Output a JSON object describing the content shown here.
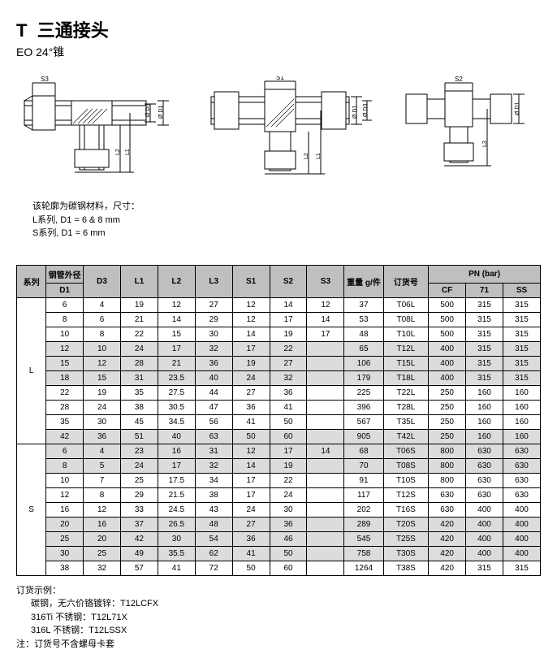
{
  "header": {
    "titlePrefix": "T",
    "titleMain": "三通接头",
    "subtitle": "EO 24°锥"
  },
  "diagramLabels": {
    "S1": "S1",
    "S2": "S2",
    "S3": "S3",
    "D1": "Ø D1",
    "D3": "Ø D3",
    "L1": "L1",
    "L2": "L2",
    "L3": "L3"
  },
  "diagramNote": {
    "line1": "该轮廓为碳钢材料，尺寸：",
    "line2": "L系列, D1 = 6 & 8 mm",
    "line3": "S系列, D1 = 6 mm"
  },
  "tableHeaders": {
    "series": "系列",
    "tubeOD": "钢管外径",
    "D1": "D1",
    "D3": "D3",
    "L1": "L1",
    "L2": "L2",
    "L3": "L3",
    "S1": "S1",
    "S2": "S2",
    "S3": "S3",
    "weight": "重量 g/件",
    "order": "订货号",
    "pn": "PN (bar)",
    "CF": "CF",
    "c71": "71",
    "SS": "SS"
  },
  "seriesL": "L",
  "seriesS": "S",
  "rowsL": [
    {
      "D1": "6",
      "D3": "4",
      "L1": "19",
      "L2": "12",
      "L3": "27",
      "S1": "12",
      "S2": "14",
      "S3": "12",
      "W": "37",
      "O": "T06L",
      "CF": "500",
      "c71": "315",
      "SS": "315",
      "sh": false
    },
    {
      "D1": "8",
      "D3": "6",
      "L1": "21",
      "L2": "14",
      "L3": "29",
      "S1": "12",
      "S2": "17",
      "S3": "14",
      "W": "53",
      "O": "T08L",
      "CF": "500",
      "c71": "315",
      "SS": "315",
      "sh": false
    },
    {
      "D1": "10",
      "D3": "8",
      "L1": "22",
      "L2": "15",
      "L3": "30",
      "S1": "14",
      "S2": "19",
      "S3": "17",
      "W": "48",
      "O": "T10L",
      "CF": "500",
      "c71": "315",
      "SS": "315",
      "sh": false
    },
    {
      "D1": "12",
      "D3": "10",
      "L1": "24",
      "L2": "17",
      "L3": "32",
      "S1": "17",
      "S2": "22",
      "S3": "",
      "W": "65",
      "O": "T12L",
      "CF": "400",
      "c71": "315",
      "SS": "315",
      "sh": true
    },
    {
      "D1": "15",
      "D3": "12",
      "L1": "28",
      "L2": "21",
      "L3": "36",
      "S1": "19",
      "S2": "27",
      "S3": "",
      "W": "106",
      "O": "T15L",
      "CF": "400",
      "c71": "315",
      "SS": "315",
      "sh": true
    },
    {
      "D1": "18",
      "D3": "15",
      "L1": "31",
      "L2": "23.5",
      "L3": "40",
      "S1": "24",
      "S2": "32",
      "S3": "",
      "W": "179",
      "O": "T18L",
      "CF": "400",
      "c71": "315",
      "SS": "315",
      "sh": true
    },
    {
      "D1": "22",
      "D3": "19",
      "L1": "35",
      "L2": "27.5",
      "L3": "44",
      "S1": "27",
      "S2": "36",
      "S3": "",
      "W": "225",
      "O": "T22L",
      "CF": "250",
      "c71": "160",
      "SS": "160",
      "sh": false
    },
    {
      "D1": "28",
      "D3": "24",
      "L1": "38",
      "L2": "30.5",
      "L3": "47",
      "S1": "36",
      "S2": "41",
      "S3": "",
      "W": "396",
      "O": "T28L",
      "CF": "250",
      "c71": "160",
      "SS": "160",
      "sh": false
    },
    {
      "D1": "35",
      "D3": "30",
      "L1": "45",
      "L2": "34.5",
      "L3": "56",
      "S1": "41",
      "S2": "50",
      "S3": "",
      "W": "567",
      "O": "T35L",
      "CF": "250",
      "c71": "160",
      "SS": "160",
      "sh": false
    },
    {
      "D1": "42",
      "D3": "36",
      "L1": "51",
      "L2": "40",
      "L3": "63",
      "S1": "50",
      "S2": "60",
      "S3": "",
      "W": "905",
      "O": "T42L",
      "CF": "250",
      "c71": "160",
      "SS": "160",
      "sh": true
    }
  ],
  "rowsS": [
    {
      "D1": "6",
      "D3": "4",
      "L1": "23",
      "L2": "16",
      "L3": "31",
      "S1": "12",
      "S2": "17",
      "S3": "14",
      "W": "68",
      "O": "T06S",
      "CF": "800",
      "c71": "630",
      "SS": "630",
      "sh": true
    },
    {
      "D1": "8",
      "D3": "5",
      "L1": "24",
      "L2": "17",
      "L3": "32",
      "S1": "14",
      "S2": "19",
      "S3": "",
      "W": "70",
      "O": "T08S",
      "CF": "800",
      "c71": "630",
      "SS": "630",
      "sh": true
    },
    {
      "D1": "10",
      "D3": "7",
      "L1": "25",
      "L2": "17.5",
      "L3": "34",
      "S1": "17",
      "S2": "22",
      "S3": "",
      "W": "91",
      "O": "T10S",
      "CF": "800",
      "c71": "630",
      "SS": "630",
      "sh": false
    },
    {
      "D1": "12",
      "D3": "8",
      "L1": "29",
      "L2": "21.5",
      "L3": "38",
      "S1": "17",
      "S2": "24",
      "S3": "",
      "W": "117",
      "O": "T12S",
      "CF": "630",
      "c71": "630",
      "SS": "630",
      "sh": false
    },
    {
      "D1": "16",
      "D3": "12",
      "L1": "33",
      "L2": "24.5",
      "L3": "43",
      "S1": "24",
      "S2": "30",
      "S3": "",
      "W": "202",
      "O": "T16S",
      "CF": "630",
      "c71": "400",
      "SS": "400",
      "sh": false
    },
    {
      "D1": "20",
      "D3": "16",
      "L1": "37",
      "L2": "26.5",
      "L3": "48",
      "S1": "27",
      "S2": "36",
      "S3": "",
      "W": "289",
      "O": "T20S",
      "CF": "420",
      "c71": "400",
      "SS": "400",
      "sh": true
    },
    {
      "D1": "25",
      "D3": "20",
      "L1": "42",
      "L2": "30",
      "L3": "54",
      "S1": "36",
      "S2": "46",
      "S3": "",
      "W": "545",
      "O": "T25S",
      "CF": "420",
      "c71": "400",
      "SS": "400",
      "sh": true
    },
    {
      "D1": "30",
      "D3": "25",
      "L1": "49",
      "L2": "35.5",
      "L3": "62",
      "S1": "41",
      "S2": "50",
      "S3": "",
      "W": "758",
      "O": "T30S",
      "CF": "420",
      "c71": "400",
      "SS": "400",
      "sh": true
    },
    {
      "D1": "38",
      "D3": "32",
      "L1": "57",
      "L2": "41",
      "L3": "72",
      "S1": "50",
      "S2": "60",
      "S3": "",
      "W": "1264",
      "O": "T38S",
      "CF": "420",
      "c71": "315",
      "SS": "315",
      "sh": false
    }
  ],
  "examples": {
    "title": "订货示例：",
    "l1": "碳钢，无六价铬镀锌：T12LCFX",
    "l2": "316Ti 不锈钢：T12L71X",
    "l3": "316L 不锈钢：T12LSSX",
    "note": "注：订货号不含螺母卡套"
  }
}
